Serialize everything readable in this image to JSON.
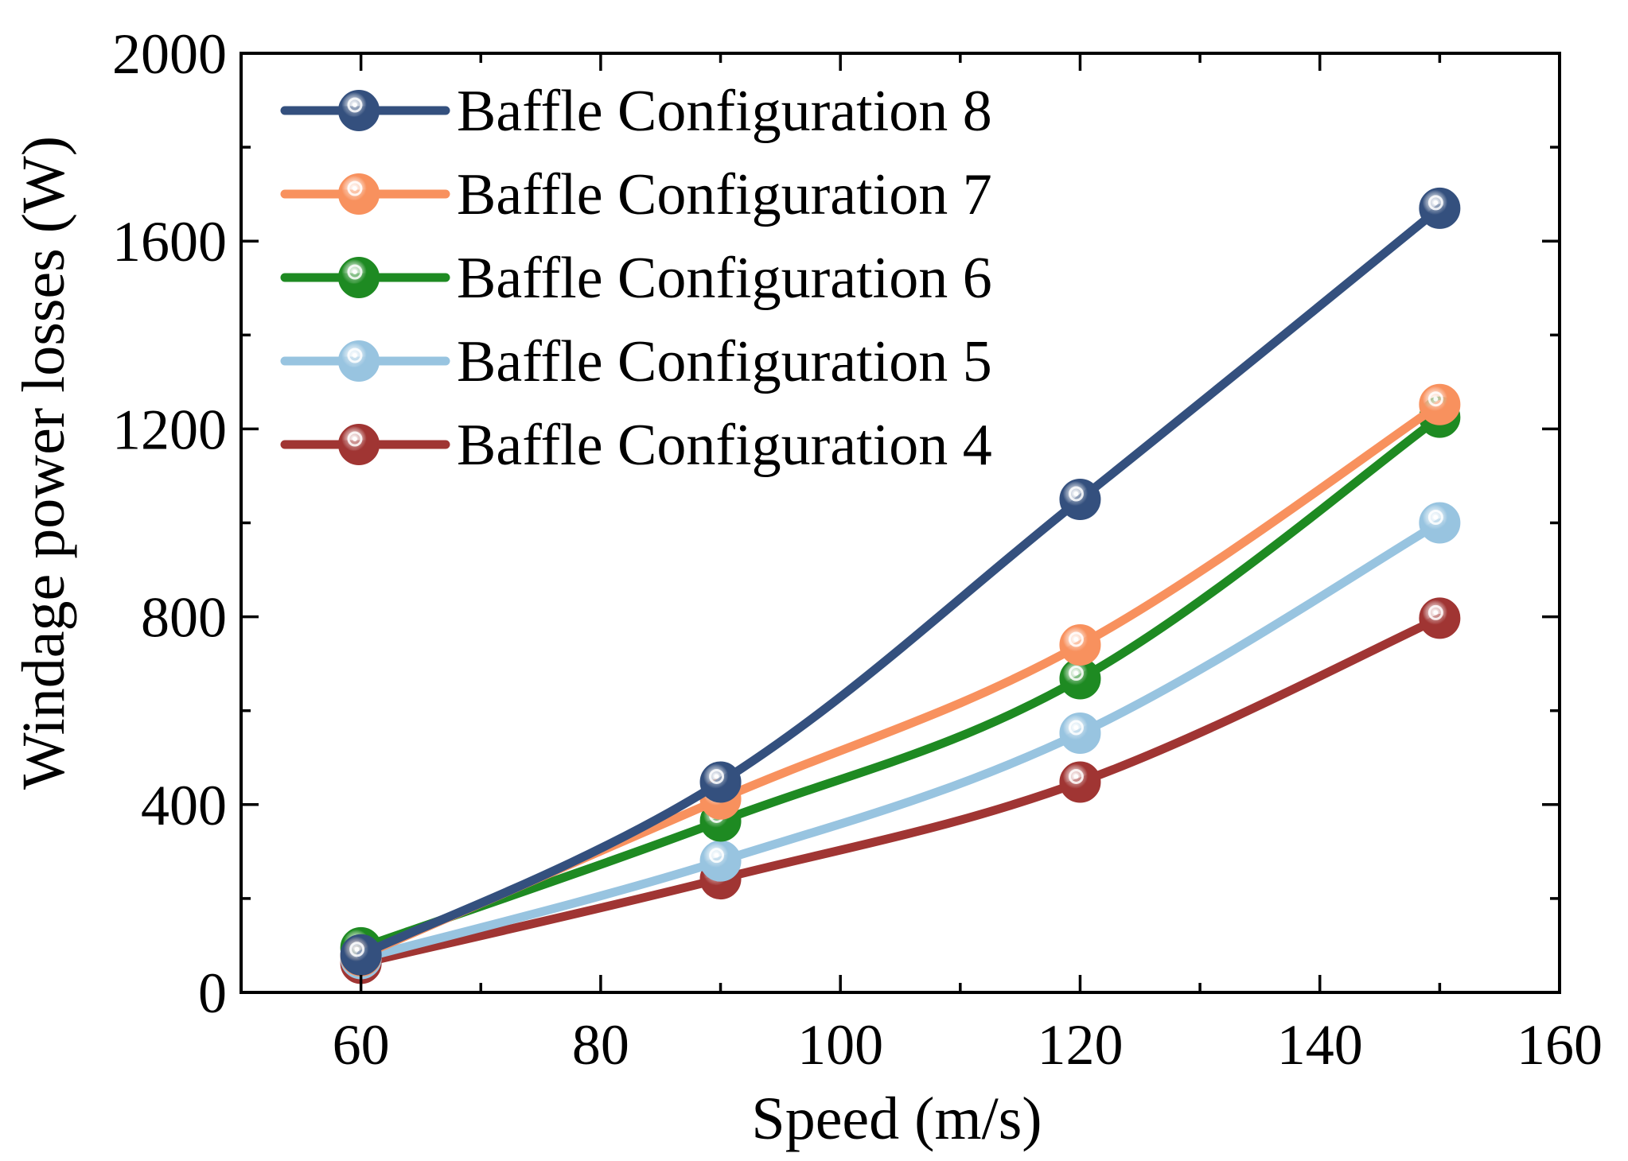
{
  "chart_data": {
    "type": "line",
    "title": "",
    "xlabel": "Speed (m/s)",
    "ylabel": "Windage power losses (W)",
    "xlim": [
      50,
      160
    ],
    "ylim": [
      0,
      2000
    ],
    "x_ticks": [
      60,
      80,
      100,
      120,
      140,
      160
    ],
    "y_ticks": [
      0,
      400,
      800,
      1200,
      1600,
      2000
    ],
    "x_tick_labels": [
      "60",
      "80",
      "100",
      "120",
      "140",
      "160"
    ],
    "y_tick_labels": [
      "0",
      "400",
      "800",
      "1200",
      "1600",
      "2000"
    ],
    "x": [
      60,
      90,
      120,
      150
    ],
    "legend_position": "top-left",
    "series": [
      {
        "name": "Baffle Configuration 8",
        "color": "#34507e",
        "values": [
          80,
          448,
          1050,
          1670
        ]
      },
      {
        "name": "Baffle Configuration 7",
        "color": "#f8915e",
        "values": [
          78,
          412,
          740,
          1252
        ]
      },
      {
        "name": "Baffle Configuration 6",
        "color": "#1e8a22",
        "values": [
          95,
          365,
          668,
          1225
        ]
      },
      {
        "name": "Baffle Configuration 5",
        "color": "#98c4e0",
        "values": [
          72,
          280,
          552,
          1000
        ]
      },
      {
        "name": "Baffle Configuration 4",
        "color": "#a03533",
        "values": [
          62,
          242,
          448,
          797
        ]
      }
    ]
  }
}
